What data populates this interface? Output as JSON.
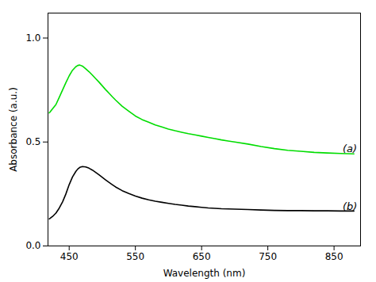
{
  "chart_data": {
    "type": "line",
    "xlabel": "Wavelength (nm)",
    "ylabel": "Absorbance (a.u.)",
    "xlim": [
      418,
      890
    ],
    "ylim": [
      0.0,
      1.12
    ],
    "xticks": [
      450,
      550,
      650,
      750,
      850
    ],
    "yticks": [
      {
        "value": 0.0,
        "label": "0.0"
      },
      0.5,
      {
        "value": 1.0,
        "label": "1.0"
      }
    ],
    "x": [
      420,
      425,
      430,
      435,
      440,
      445,
      450,
      455,
      460,
      463,
      466,
      470,
      475,
      480,
      485,
      490,
      495,
      500,
      505,
      510,
      515,
      520,
      530,
      540,
      550,
      560,
      570,
      580,
      590,
      600,
      610,
      620,
      630,
      640,
      650,
      660,
      670,
      680,
      690,
      700,
      720,
      740,
      760,
      780,
      800,
      820,
      840,
      860,
      880
    ],
    "series": [
      {
        "color": "#00dd00",
        "values": [
          0.64,
          0.66,
          0.68,
          0.715,
          0.75,
          0.785,
          0.818,
          0.845,
          0.862,
          0.868,
          0.87,
          0.865,
          0.852,
          0.838,
          0.822,
          0.805,
          0.788,
          0.77,
          0.752,
          0.735,
          0.718,
          0.702,
          0.672,
          0.648,
          0.625,
          0.608,
          0.595,
          0.582,
          0.572,
          0.562,
          0.554,
          0.547,
          0.54,
          0.534,
          0.528,
          0.522,
          0.516,
          0.51,
          0.505,
          0.5,
          0.49,
          0.478,
          0.468,
          0.46,
          0.455,
          0.45,
          0.447,
          0.445,
          0.443
        ]
      },
      {
        "color": "#000000",
        "values": [
          0.13,
          0.142,
          0.158,
          0.182,
          0.212,
          0.25,
          0.295,
          0.332,
          0.358,
          0.37,
          0.378,
          0.382,
          0.38,
          0.374,
          0.365,
          0.354,
          0.342,
          0.33,
          0.318,
          0.306,
          0.295,
          0.284,
          0.266,
          0.252,
          0.24,
          0.23,
          0.222,
          0.215,
          0.21,
          0.205,
          0.2,
          0.196,
          0.192,
          0.189,
          0.186,
          0.183,
          0.181,
          0.179,
          0.178,
          0.177,
          0.175,
          0.173,
          0.171,
          0.17,
          0.17,
          0.169,
          0.169,
          0.168,
          0.168
        ]
      }
    ],
    "annotations": [
      {
        "text": "(a)",
        "x": 863,
        "y": 0.452
      },
      {
        "text": "(b)",
        "x": 863,
        "y": 0.172
      }
    ]
  }
}
